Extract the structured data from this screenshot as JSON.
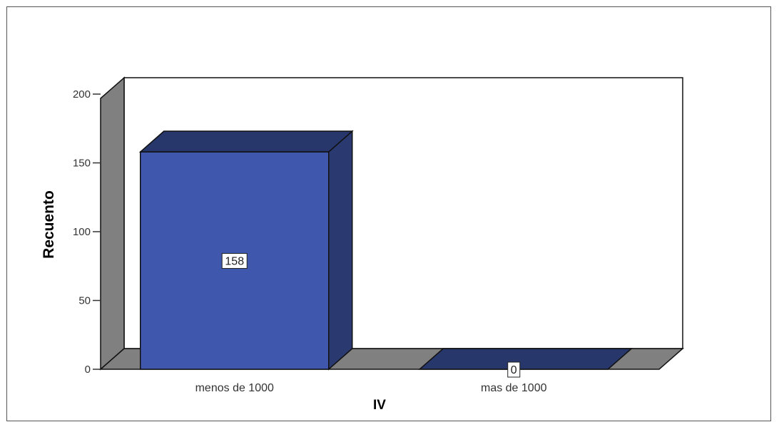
{
  "chart_data": {
    "type": "bar",
    "style": "3d",
    "categories": [
      "menos de 1000",
      "mas de 1000"
    ],
    "values": [
      158,
      0
    ],
    "data_labels": [
      "158",
      "0"
    ],
    "xlabel": "IV",
    "ylabel": "Recuento",
    "ylim": [
      0,
      200
    ],
    "yticks": [
      0,
      50,
      100,
      150,
      200
    ],
    "grid": false,
    "colors": {
      "bar_front": "#3f58ad",
      "bar_top": "#27366b",
      "bar_side": "#2a3a70",
      "wall": "#808080",
      "back_wall": "#ffffff"
    }
  }
}
